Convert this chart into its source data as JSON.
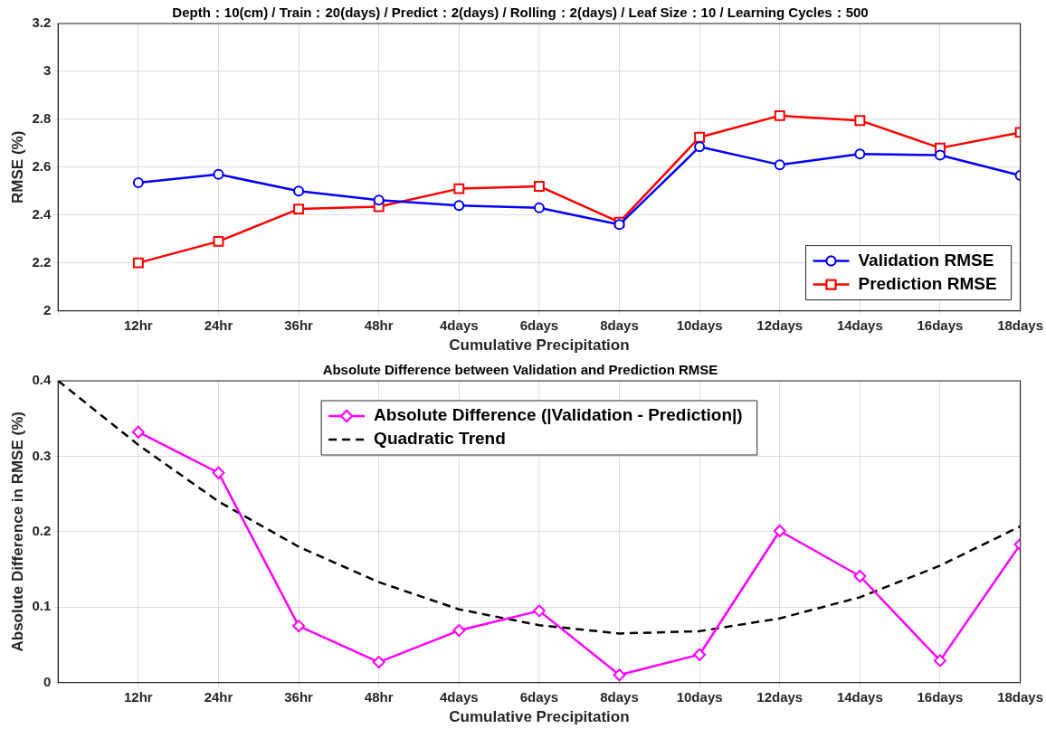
{
  "chart_data": [
    {
      "type": "line",
      "title": "Depth：10(cm) / Train：20(days) / Predict：2(days) / Rolling：2(days) / Leaf Size：10 / Learning Cycles：500",
      "xlabel": "Cumulative Precipitation",
      "ylabel": "RMSE (%)",
      "categories": [
        null,
        "12hr",
        "24hr",
        "36hr",
        "48hr",
        "4days",
        "6days",
        "8days",
        "10days",
        "12days",
        "14days",
        "16days",
        "18days"
      ],
      "ylim": [
        2,
        3.2
      ],
      "yticks": [
        2,
        2.2,
        2.4,
        2.6,
        2.8,
        3,
        3.2
      ],
      "grid": true,
      "legend": "bottom right",
      "series": [
        {
          "name": "Validation RMSE",
          "color": "#0000ff",
          "marker": "circle",
          "values": [
            null,
            2.535,
            2.57,
            2.5,
            2.462,
            2.44,
            2.43,
            2.36,
            2.685,
            2.61,
            2.655,
            2.65,
            2.565
          ]
        },
        {
          "name": "Prediction RMSE",
          "color": "#ff0000",
          "marker": "square",
          "values": [
            null,
            2.2,
            2.29,
            2.425,
            2.435,
            2.51,
            2.52,
            2.37,
            2.725,
            2.815,
            2.795,
            2.68,
            2.745
          ]
        }
      ]
    },
    {
      "type": "line",
      "title": "Absolute Difference between Validation and Prediction RMSE",
      "xlabel": "Cumulative Precipitation",
      "ylabel": "Absolute Difference in RMSE (%)",
      "categories": [
        null,
        "12hr",
        "24hr",
        "36hr",
        "48hr",
        "4days",
        "6days",
        "8days",
        "10days",
        "12days",
        "14days",
        "16days",
        "18days"
      ],
      "ylim": [
        0,
        0.4
      ],
      "yticks": [
        0,
        0.1,
        0.2,
        0.3,
        0.4
      ],
      "grid": true,
      "legend": "top",
      "series": [
        {
          "name": "Absolute Difference (|Validation - Prediction|)",
          "color": "#ff00ff",
          "marker": "diamond",
          "values": [
            null,
            0.332,
            0.278,
            0.075,
            0.027,
            0.069,
            0.095,
            0.01,
            0.037,
            0.201,
            0.141,
            0.029,
            0.183
          ]
        },
        {
          "name": "Quadratic Trend",
          "color": "#000000",
          "marker": "none",
          "line_style": "dashed",
          "values": [
            0.4,
            0.315,
            0.24,
            0.18,
            0.133,
            0.097,
            0.076,
            0.065,
            0.068,
            0.085,
            0.113,
            0.155,
            0.207
          ]
        }
      ]
    }
  ]
}
